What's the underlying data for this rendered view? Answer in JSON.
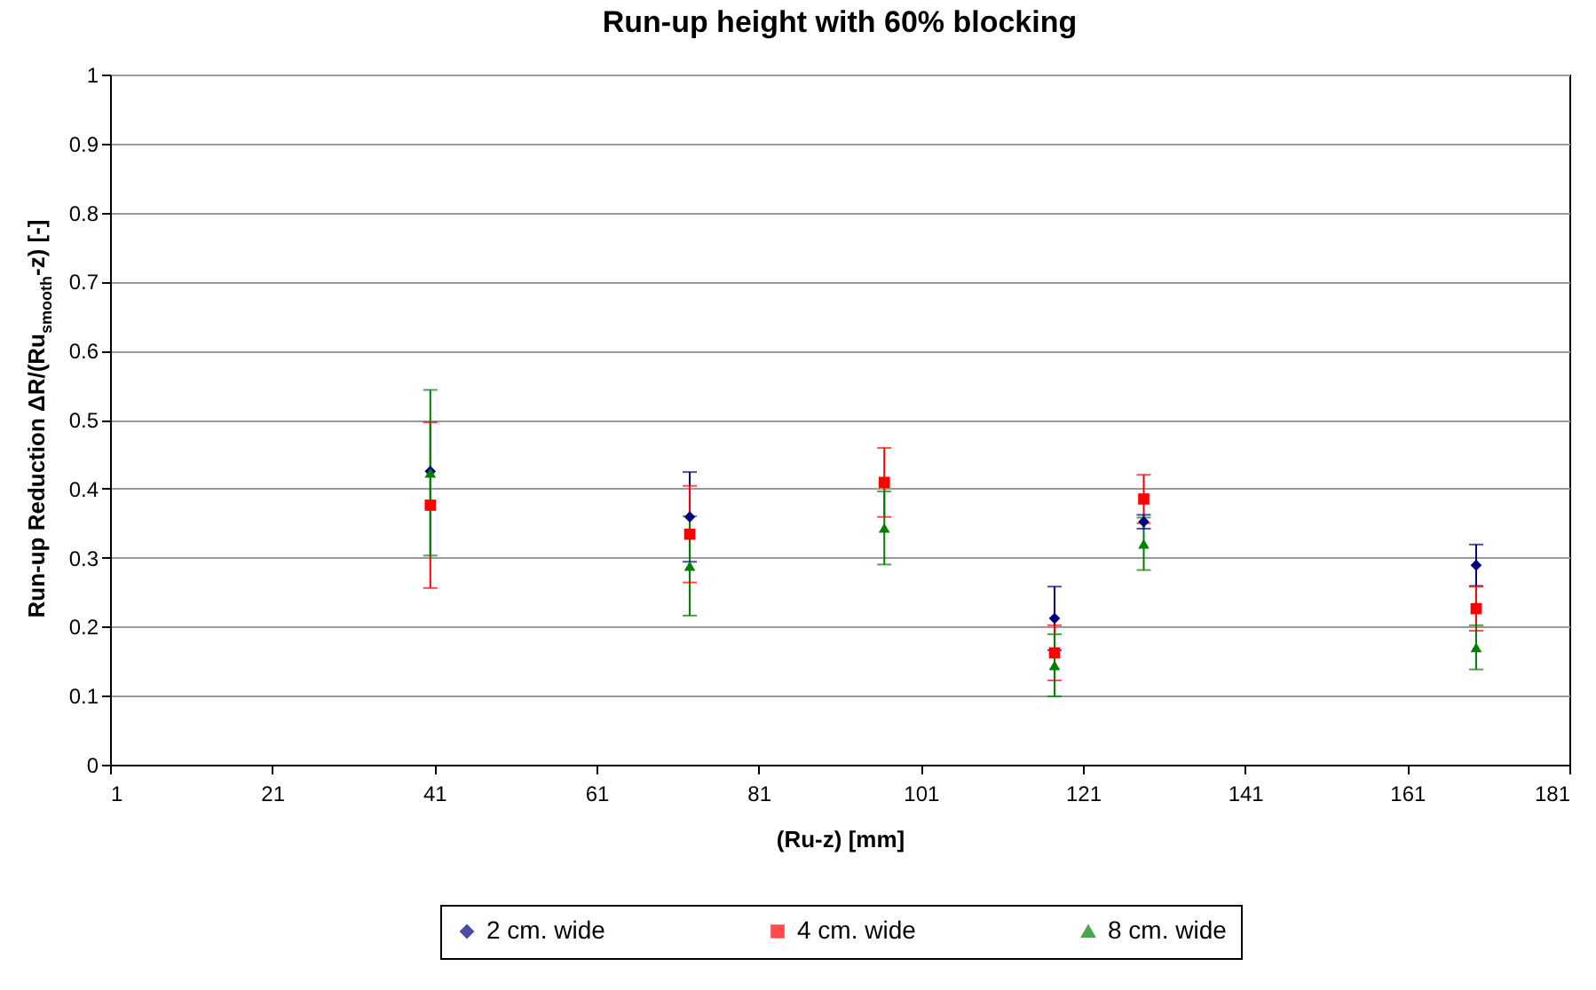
{
  "chart_data": {
    "type": "scatter",
    "title": "Run-up height with 60% blocking",
    "xlabel": "(Ru-z)  [mm]",
    "ylabel": "Run-up Reduction  ΔR/(Ru$_{smooth}$-z)  [-]",
    "xlim": [
      1,
      181
    ],
    "xticks": [
      1,
      21,
      41,
      61,
      81,
      101,
      121,
      141,
      161,
      181
    ],
    "ylim": [
      0,
      1
    ],
    "yticks": [
      0,
      0.1,
      0.2,
      0.3,
      0.4,
      0.5,
      0.6,
      0.7,
      0.8,
      0.9,
      1
    ],
    "grid": "y",
    "legend": "bottom",
    "series": [
      {
        "name": "2 cm. wide",
        "color": "#000080",
        "marker": "diamond",
        "x": [
          40.5,
          72.5,
          96.5,
          117.5,
          128.5,
          169.5
        ],
        "values": [
          0.425,
          0.359,
          null,
          0.212,
          0.352,
          0.289
        ],
        "errors": [
          null,
          0.065,
          null,
          0.046,
          0.01,
          0.03
        ]
      },
      {
        "name": "4 cm. wide",
        "color": "#ff0000",
        "marker": "square",
        "x": [
          40.5,
          72.5,
          96.5,
          117.5,
          128.5,
          169.5
        ],
        "values": [
          0.376,
          0.334,
          0.409,
          0.162,
          0.385,
          0.226
        ],
        "errors": [
          0.12,
          0.07,
          0.05,
          0.04,
          0.035,
          0.032
        ]
      },
      {
        "name": "8 cm. wide",
        "color": "#008000",
        "marker": "triangle",
        "x": [
          40.5,
          72.5,
          96.5,
          117.5,
          128.5,
          169.5
        ],
        "values": [
          0.423,
          0.288,
          0.343,
          0.144,
          0.32,
          0.17
        ],
        "errors": [
          0.12,
          0.072,
          0.053,
          0.045,
          0.038,
          0.032
        ]
      }
    ]
  }
}
